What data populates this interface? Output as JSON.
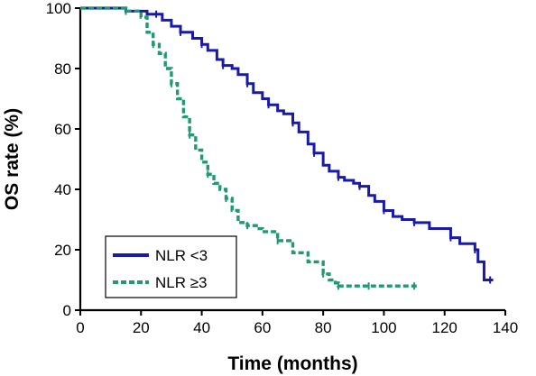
{
  "chart_data": {
    "type": "line",
    "title": "",
    "xlabel": "Time (months)",
    "ylabel": "OS rate (%)",
    "xlim": [
      0,
      140
    ],
    "ylim": [
      0,
      100
    ],
    "xticks": [
      "0",
      "20",
      "40",
      "60",
      "80",
      "100",
      "120",
      "140"
    ],
    "yticks": [
      "0",
      "20",
      "40",
      "60",
      "80",
      "100"
    ],
    "grid": false,
    "legend_position": "bottom-left",
    "series": [
      {
        "name": "NLR <3",
        "color": "#1a1aa8",
        "line_style": "solid",
        "x": [
          0,
          5,
          10,
          15,
          20,
          22,
          25,
          27,
          30,
          33,
          35,
          37,
          40,
          42,
          45,
          47,
          50,
          52,
          55,
          57,
          60,
          62,
          65,
          67,
          70,
          72,
          75,
          77,
          80,
          82,
          85,
          87,
          90,
          92,
          95,
          97,
          100,
          103,
          106,
          110,
          115,
          120,
          122,
          125,
          128,
          130,
          131,
          133,
          135,
          136
        ],
        "y": [
          100,
          100,
          100,
          99,
          99,
          98,
          98,
          96,
          94,
          92,
          92,
          90,
          88,
          86,
          83,
          81,
          80,
          78,
          75,
          72,
          70,
          68,
          66,
          65,
          62,
          59,
          55,
          52,
          48,
          46,
          44,
          43,
          42,
          41,
          38,
          36,
          33,
          31,
          30,
          29,
          27,
          27,
          24,
          22,
          22,
          20,
          16,
          10,
          10,
          10
        ]
      },
      {
        "name": "NLR ≥3",
        "color": "#1f9a72",
        "line_style": "dashed",
        "x": [
          0,
          5,
          10,
          15,
          20,
          22,
          24,
          26,
          28,
          30,
          32,
          34,
          36,
          38,
          40,
          42,
          44,
          46,
          48,
          50,
          52,
          55,
          58,
          60,
          65,
          70,
          75,
          80,
          82,
          84,
          85,
          87,
          90,
          95,
          100,
          105,
          110,
          111
        ],
        "y": [
          100,
          100,
          100,
          99,
          97,
          92,
          88,
          85,
          80,
          75,
          70,
          64,
          58,
          53,
          49,
          45,
          42,
          40,
          37,
          33,
          29,
          28,
          27,
          26,
          23,
          19,
          16,
          12,
          10,
          9,
          8,
          8,
          8,
          8,
          8,
          8,
          8,
          8
        ]
      }
    ]
  }
}
